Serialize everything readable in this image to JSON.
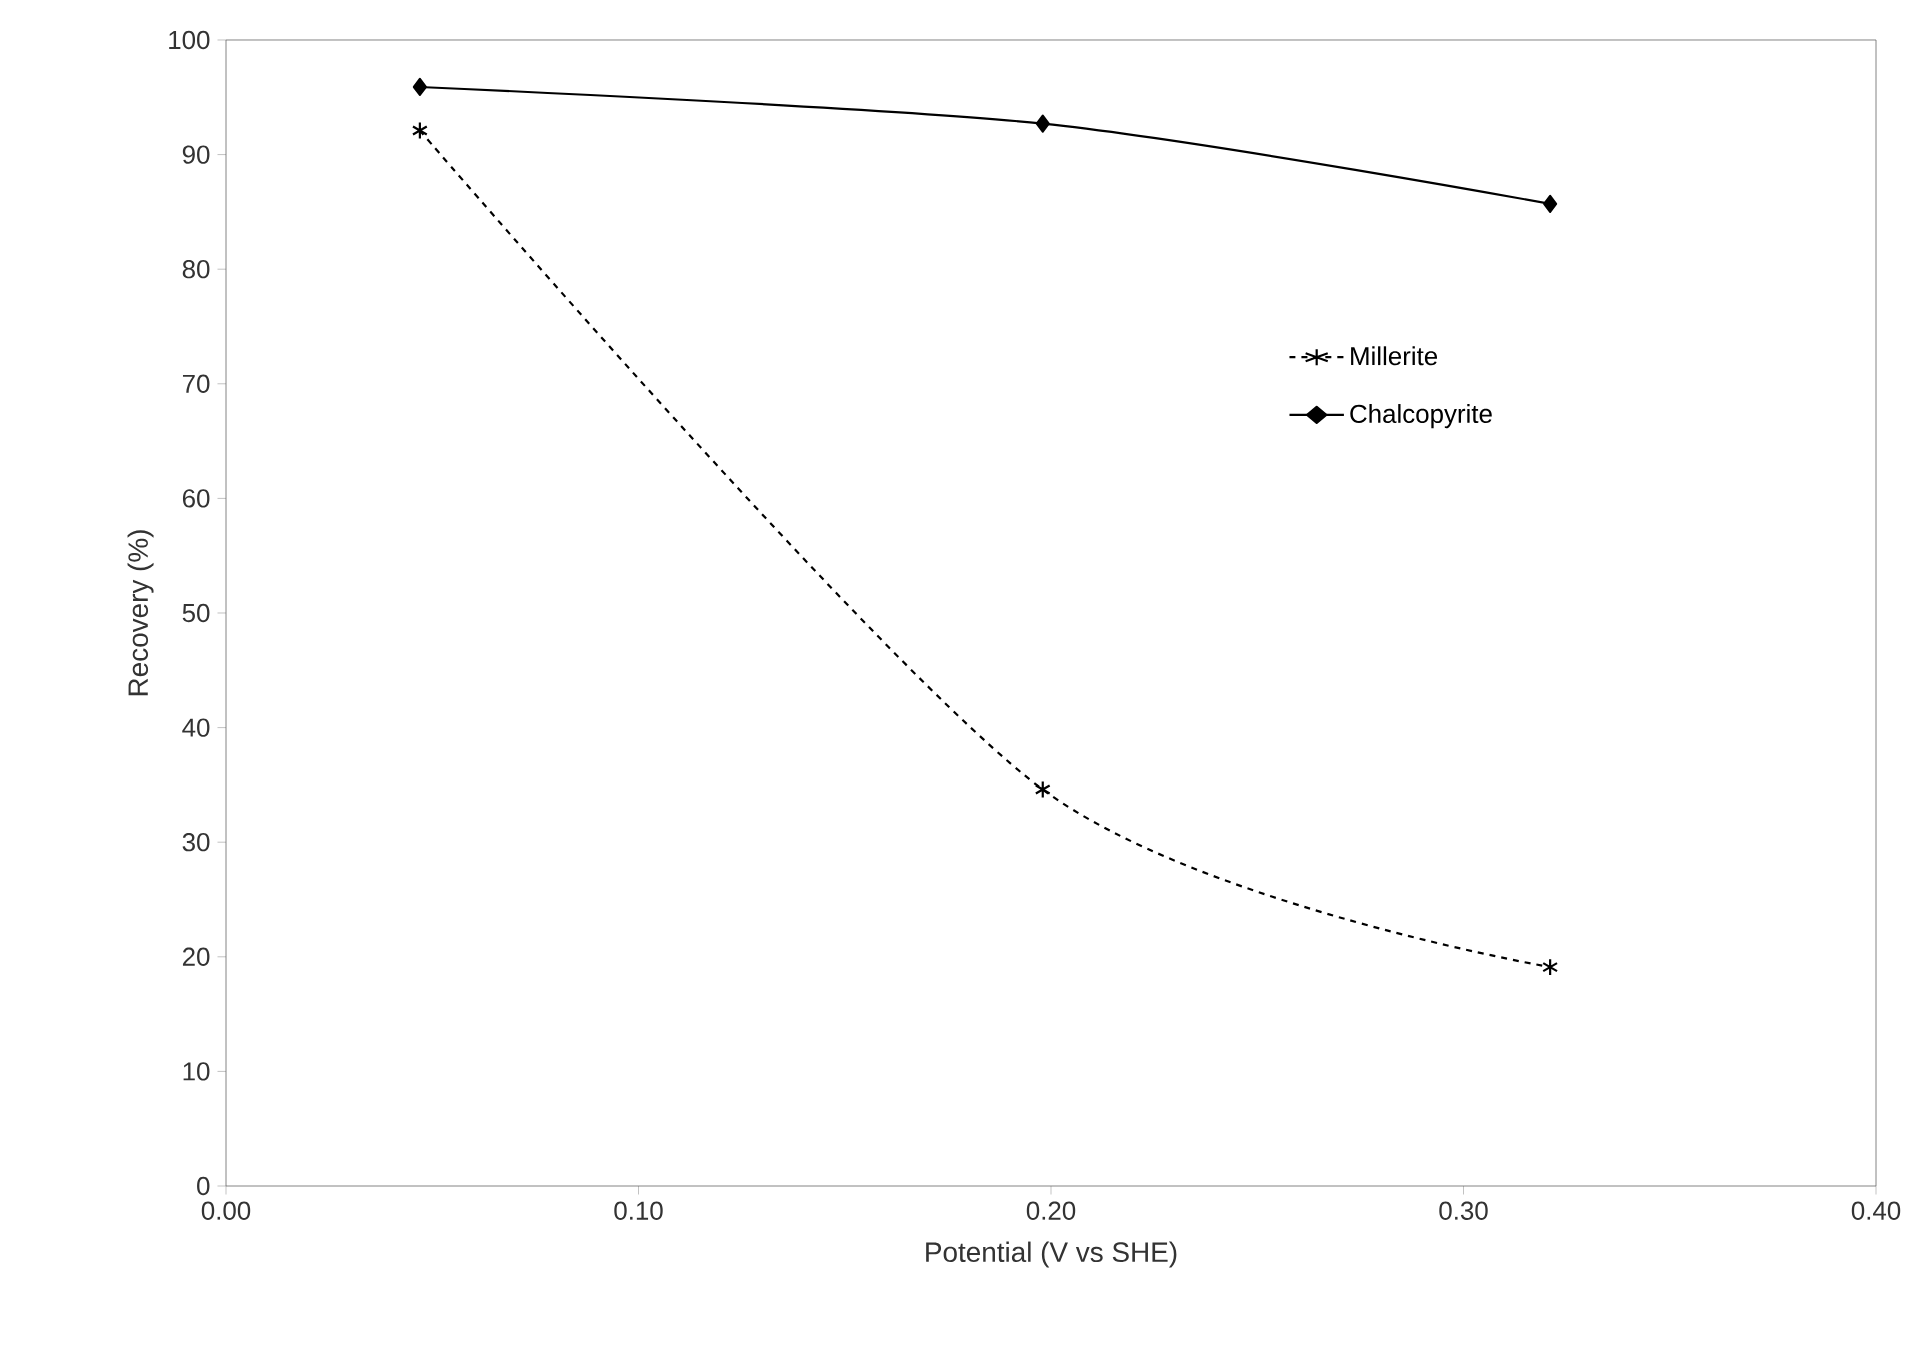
{
  "chart_data": {
    "type": "line",
    "xlabel": "Potential (V vs SHE)",
    "ylabel": "Recovery (%)",
    "xlim": [
      0,
      0.4
    ],
    "ylim": [
      0,
      100
    ],
    "xticks": [
      {
        "value": 0,
        "label": "0.00"
      },
      {
        "value": 0.1,
        "label": "0.10"
      },
      {
        "value": 0.2,
        "label": "0.20"
      },
      {
        "value": 0.3,
        "label": "0.30"
      },
      {
        "value": 0.4,
        "label": "0.40"
      }
    ],
    "yticks": [
      0,
      10,
      20,
      30,
      40,
      50,
      60,
      70,
      80,
      90,
      100
    ],
    "x": [
      0.047,
      0.198,
      0.321
    ],
    "series": [
      {
        "name": "Millerite",
        "color": "#000000",
        "values": [
          92.1,
          34.6,
          19.1
        ],
        "marker": "cross",
        "line_style": "dashed"
      },
      {
        "name": "Chalcopyrite",
        "color": "#000000",
        "values": [
          95.9,
          92.7,
          85.7
        ],
        "marker": "diamond",
        "line_style": "solid"
      }
    ],
    "legend": "right",
    "grid": false
  }
}
